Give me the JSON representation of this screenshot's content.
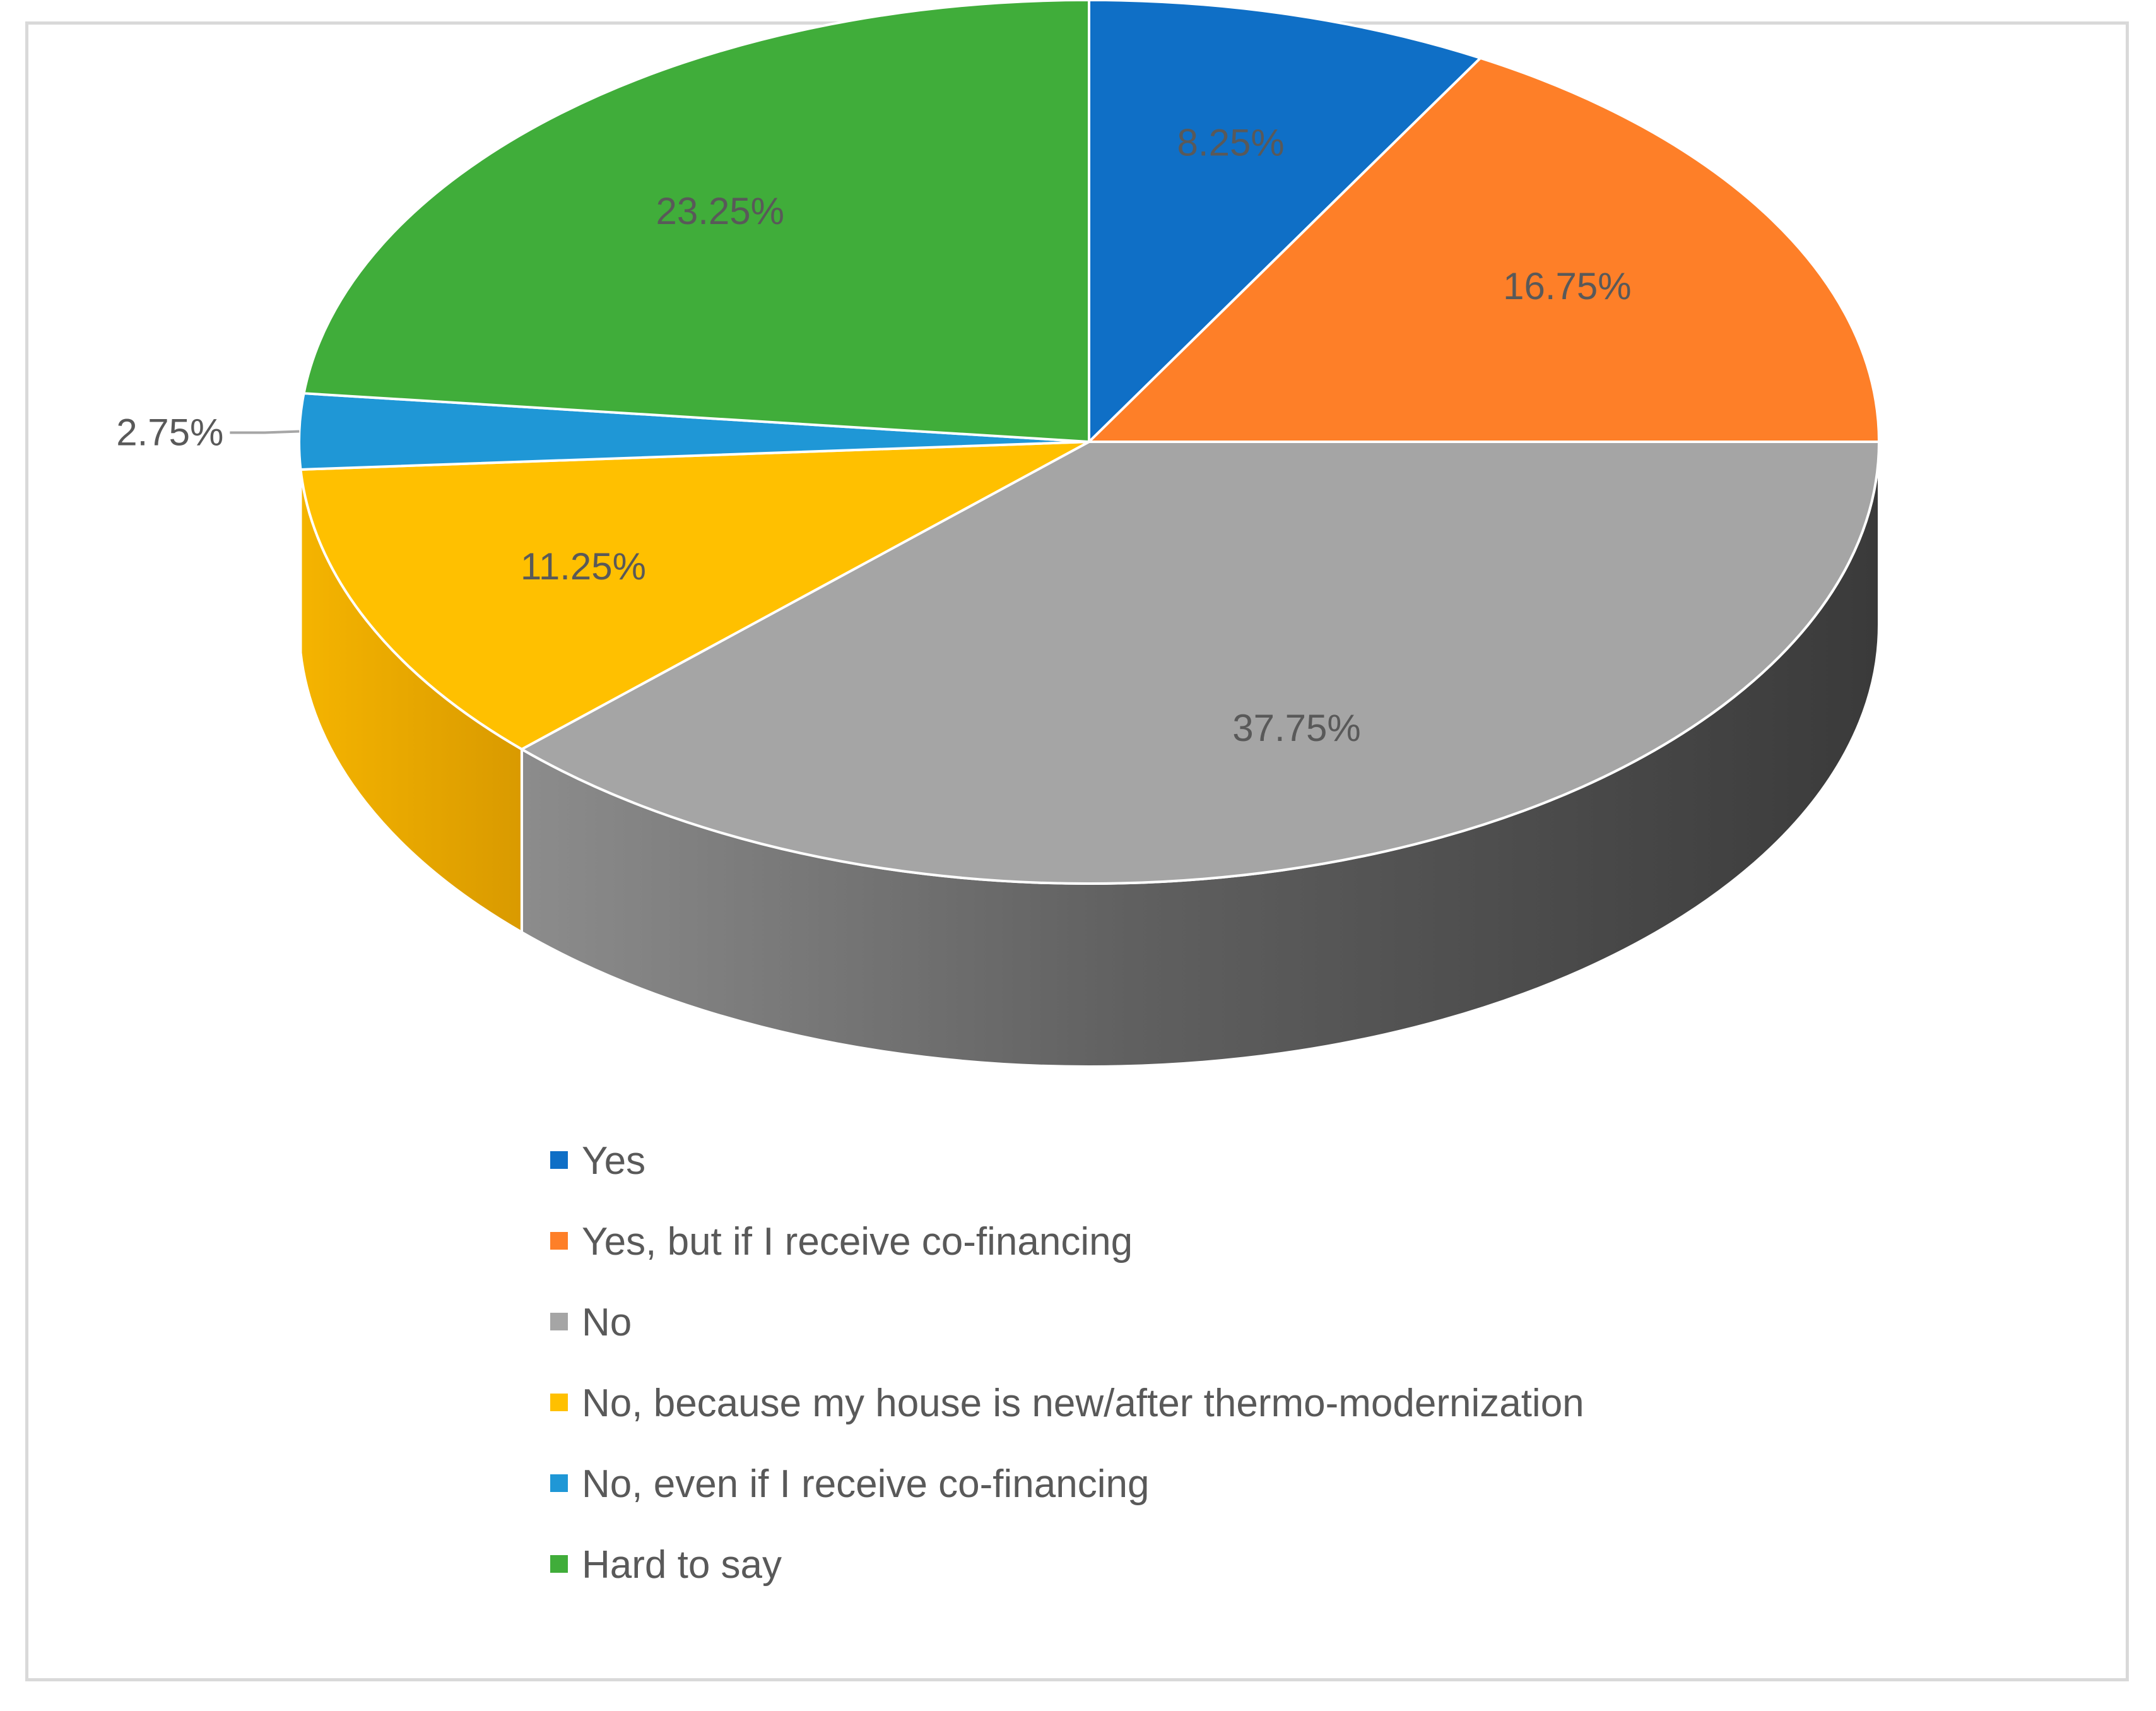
{
  "chart_data": {
    "type": "pie",
    "style": "3d",
    "title": "",
    "categories": [
      "Yes",
      "Yes, but if I receive co-financing",
      "No",
      "No, because my house is new/after thermo-modernization",
      "No, even if I receive co-financing",
      "Hard to say"
    ],
    "values": [
      8.25,
      16.75,
      37.75,
      11.25,
      2.75,
      23.25
    ],
    "labels": [
      "8.25%",
      "16.75%",
      "37.75%",
      "11.25%",
      "2.75%",
      "23.25%"
    ],
    "colors": [
      "#0f6fc6",
      "#fe7f28",
      "#a5a5a5",
      "#ffc000",
      "#1f97d6",
      "#40ad3a"
    ],
    "legend_position": "bottom",
    "start_angle": "12 o'clock, clockwise"
  }
}
